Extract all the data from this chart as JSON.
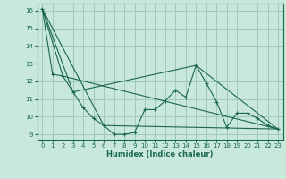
{
  "xlabel": "Humidex (Indice chaleur)",
  "bg_color": "#c8e8dc",
  "grid_color": "#a0c8b8",
  "line_color": "#1a6650",
  "series": [
    [
      0,
      16.1
    ],
    [
      1,
      12.4
    ],
    [
      2,
      12.3
    ],
    [
      3,
      11.4
    ],
    [
      4,
      10.5
    ],
    [
      5,
      9.9
    ],
    [
      6,
      9.5
    ],
    [
      7,
      9.0
    ],
    [
      8,
      9.0
    ],
    [
      9,
      9.1
    ],
    [
      10,
      10.4
    ],
    [
      11,
      10.4
    ],
    [
      12,
      10.9
    ],
    [
      13,
      11.5
    ],
    [
      14,
      11.1
    ],
    [
      15,
      12.9
    ],
    [
      16,
      11.9
    ],
    [
      17,
      10.85
    ],
    [
      18,
      9.4
    ],
    [
      19,
      10.2
    ],
    [
      20,
      10.2
    ],
    [
      21,
      9.9
    ],
    [
      22,
      9.5
    ],
    [
      23,
      9.3
    ]
  ],
  "series2": [
    [
      0,
      16.1
    ],
    [
      2,
      12.3
    ],
    [
      23,
      9.3
    ]
  ],
  "series3": [
    [
      0,
      16.1
    ],
    [
      3,
      11.4
    ],
    [
      15,
      12.9
    ],
    [
      23,
      9.3
    ]
  ],
  "series4": [
    [
      0,
      16.1
    ],
    [
      6,
      9.5
    ],
    [
      23,
      9.3
    ]
  ],
  "ylim": [
    8.7,
    16.4
  ],
  "yticks": [
    9,
    10,
    11,
    12,
    13,
    14,
    15,
    16
  ],
  "xlim": [
    -0.5,
    23.5
  ],
  "xticks": [
    0,
    1,
    2,
    3,
    4,
    5,
    6,
    7,
    8,
    9,
    10,
    11,
    12,
    13,
    14,
    15,
    16,
    17,
    18,
    19,
    20,
    21,
    22,
    23
  ]
}
